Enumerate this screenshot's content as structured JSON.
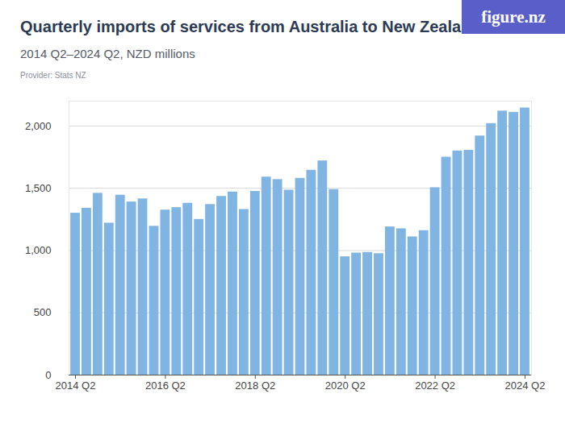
{
  "chart_data": {
    "type": "bar",
    "title": "Quarterly imports of services from Australia to New Zealand",
    "subtitle": "2014 Q2–2024 Q2, NZD millions",
    "caption": "Provider: Stats NZ",
    "brand": "figure.nz",
    "categories": [
      "2014 Q2",
      null,
      null,
      null,
      null,
      null,
      null,
      null,
      "2016 Q2",
      null,
      null,
      null,
      null,
      null,
      null,
      null,
      "2018 Q2",
      null,
      null,
      null,
      null,
      null,
      null,
      null,
      "2020 Q2",
      null,
      null,
      null,
      null,
      null,
      null,
      null,
      "2022 Q2",
      null,
      null,
      null,
      null,
      null,
      null,
      null,
      "2024 Q2"
    ],
    "values": [
      1300,
      1340,
      1460,
      1220,
      1445,
      1390,
      1415,
      1195,
      1325,
      1345,
      1380,
      1250,
      1370,
      1435,
      1470,
      1330,
      1475,
      1590,
      1570,
      1485,
      1580,
      1645,
      1720,
      1490,
      950,
      980,
      985,
      975,
      1190,
      1175,
      1110,
      1160,
      1505,
      1750,
      1800,
      1805,
      1920,
      2020,
      2120,
      2110,
      2145
    ],
    "color": "#80b4e3",
    "ylim": [
      0,
      2200
    ],
    "yticks": [
      0,
      500,
      {
        "value": 1000,
        "label": "1,000"
      },
      {
        "value": 1500,
        "label": "1,500"
      },
      {
        "value": 2000,
        "label": "2,000"
      }
    ],
    "grid": true
  }
}
